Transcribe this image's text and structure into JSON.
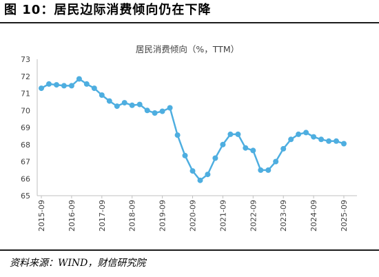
{
  "figure": {
    "title": "图 10：居民边际消费倾向仍在下降",
    "source": "资料来源：WIND，财信研究院"
  },
  "chart_data": {
    "type": "line",
    "title": "居民消费倾向（%，TTM）",
    "xlabel": "",
    "ylabel": "",
    "ylim": [
      65,
      73
    ],
    "yticks": [
      65,
      66,
      67,
      68,
      69,
      70,
      71,
      72,
      73
    ],
    "xticks": [
      "2015-09",
      "2016-09",
      "2017-09",
      "2018-09",
      "2019-09",
      "2020-09",
      "2021-09",
      "2022-09",
      "2023-09",
      "2024-09",
      "2025-09"
    ],
    "grid": false,
    "legend": "none",
    "line_color": "#4eaee0",
    "x": [
      "2015-09",
      "2015-12",
      "2016-03",
      "2016-06",
      "2016-09",
      "2016-12",
      "2017-03",
      "2017-06",
      "2017-09",
      "2017-12",
      "2018-03",
      "2018-06",
      "2018-09",
      "2018-12",
      "2019-03",
      "2019-06",
      "2019-09",
      "2019-12",
      "2020-03",
      "2020-06",
      "2020-09",
      "2020-12",
      "2021-03",
      "2021-06",
      "2021-09",
      "2021-12",
      "2022-03",
      "2022-06",
      "2022-09",
      "2022-12",
      "2023-03",
      "2023-06",
      "2023-09",
      "2023-12",
      "2024-03",
      "2024-06",
      "2024-09",
      "2024-12",
      "2025-03",
      "2025-06",
      "2025-09"
    ],
    "values": [
      71.3,
      71.55,
      71.5,
      71.45,
      71.45,
      71.85,
      71.55,
      71.3,
      70.9,
      70.55,
      70.25,
      70.45,
      70.3,
      70.35,
      70.0,
      69.85,
      69.95,
      70.15,
      68.55,
      67.35,
      66.45,
      65.9,
      66.25,
      67.2,
      68.0,
      68.6,
      68.6,
      67.8,
      67.65,
      66.5,
      66.5,
      67.0,
      67.75,
      68.3,
      68.6,
      68.7,
      68.45,
      68.3,
      68.2,
      68.2,
      68.05
    ]
  }
}
